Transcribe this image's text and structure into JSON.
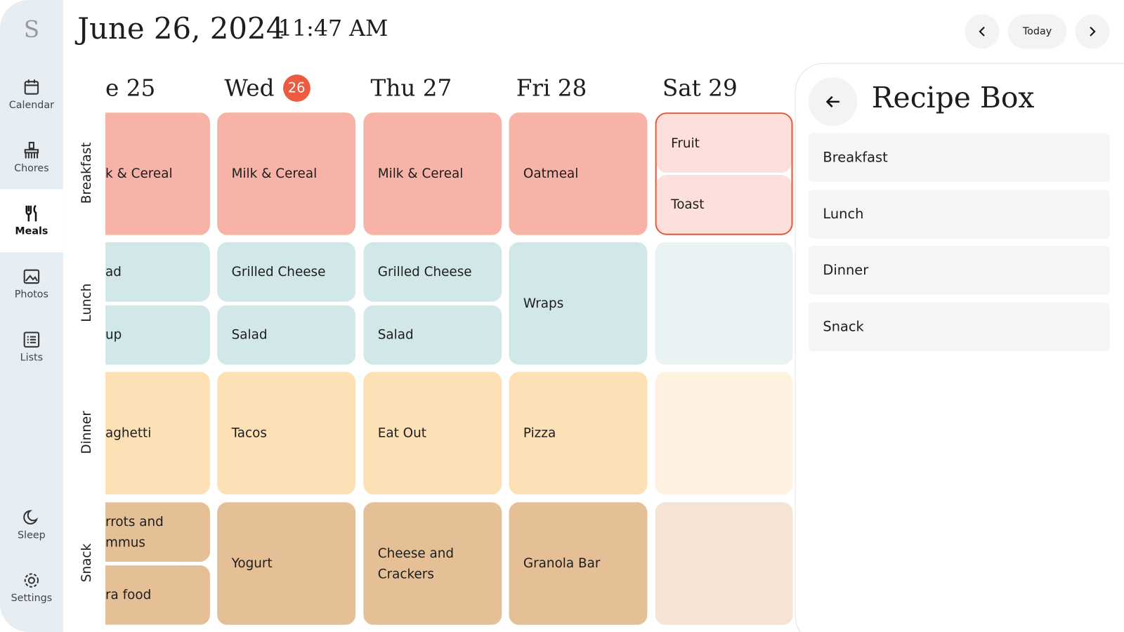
{
  "header": {
    "avatar": "S",
    "date": "June 26, 2024",
    "time": "11:47 AM",
    "today_button": "Today"
  },
  "nav": {
    "top": [
      "Calendar",
      "Chores",
      "Meals",
      "Photos",
      "Lists"
    ],
    "bottom": [
      "Sleep",
      "Settings"
    ],
    "active": "Meals"
  },
  "days": [
    {
      "label": "e 25"
    },
    {
      "label": "Wed",
      "badge": "26"
    },
    {
      "label": "Thu 27"
    },
    {
      "label": "Fri 28"
    },
    {
      "label": "Sat 29"
    }
  ],
  "meals": [
    {
      "label": "Breakfast",
      "cells": [
        [
          "k & Cereal"
        ],
        [
          "Milk & Cereal"
        ],
        [
          "Milk & Cereal"
        ],
        [
          "Oatmeal"
        ],
        [
          "Fruit",
          "Toast"
        ]
      ]
    },
    {
      "label": "Lunch",
      "cells": [
        [
          "ad",
          "up"
        ],
        [
          "Grilled Cheese",
          "Salad"
        ],
        [
          "Grilled Cheese",
          "Salad"
        ],
        [
          "Wraps"
        ],
        []
      ]
    },
    {
      "label": "Dinner",
      "cells": [
        [
          "aghetti"
        ],
        [
          "Tacos"
        ],
        [
          "Eat Out"
        ],
        [
          "Pizza"
        ],
        []
      ]
    },
    {
      "label": "Snack",
      "cells": [
        [
          "rrots and\nmmus",
          "ra food"
        ],
        [
          "Yogurt"
        ],
        [
          "Cheese and\nCrackers"
        ],
        [
          "Granola Bar"
        ],
        []
      ]
    }
  ],
  "recipe_box": {
    "title": "Recipe Box",
    "items": [
      "Breakfast",
      "Lunch",
      "Dinner",
      "Snack"
    ]
  }
}
